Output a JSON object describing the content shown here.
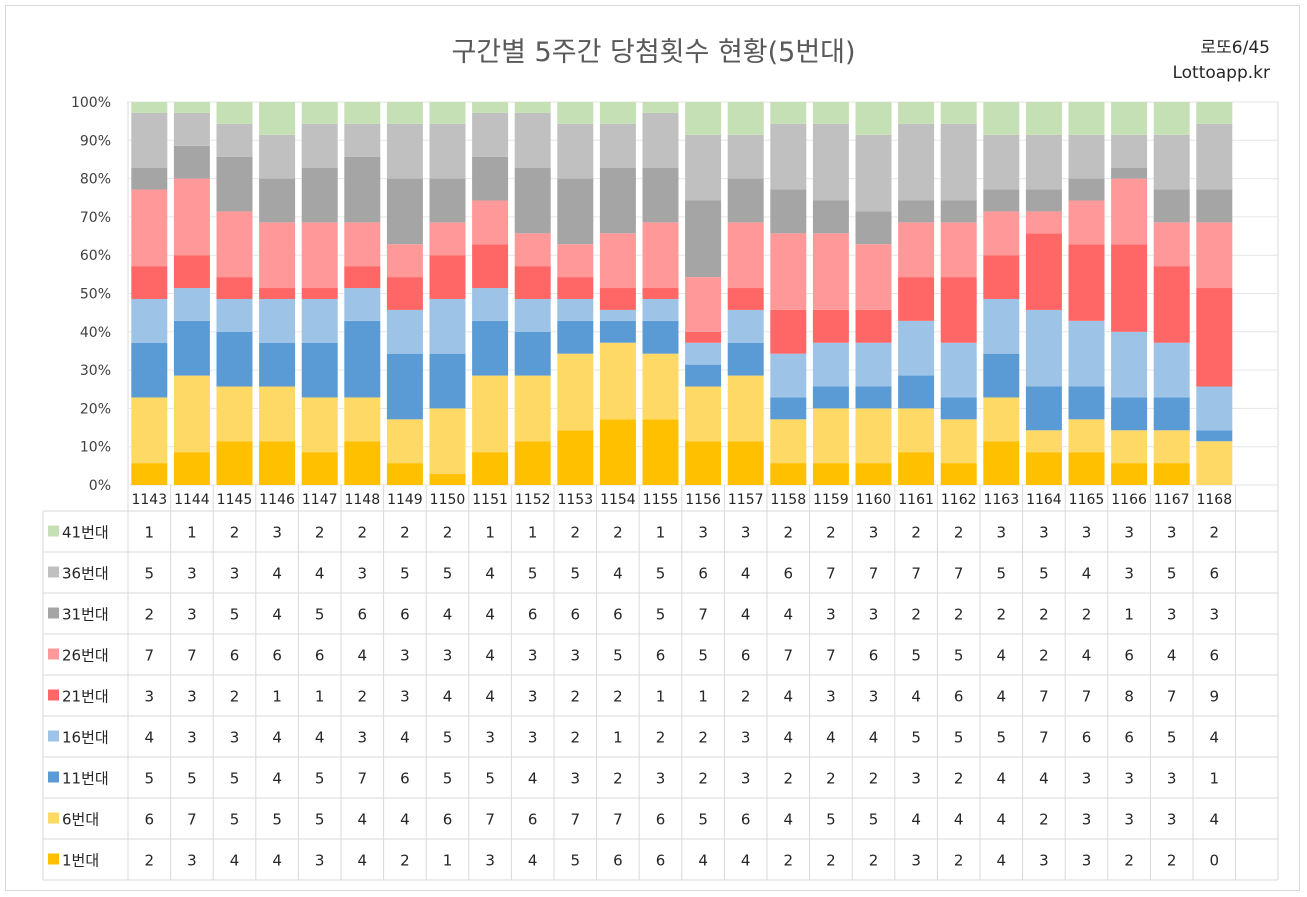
{
  "title": "구간별 5주간 당첨횟수 현황(5번대)",
  "corner_top": "로또6/45",
  "corner_bottom": "Lottoapp.kr",
  "chart_data": {
    "type": "bar",
    "stacked": "percent",
    "title": "구간별 5주간 당첨횟수 현황(5번대)",
    "categories": [
      "1143",
      "1144",
      "1145",
      "1146",
      "1147",
      "1148",
      "1149",
      "1150",
      "1151",
      "1152",
      "1153",
      "1154",
      "1155",
      "1156",
      "1157",
      "1158",
      "1159",
      "1160",
      "1161",
      "1162",
      "1163",
      "1164",
      "1165",
      "1166",
      "1167",
      "1168"
    ],
    "yticks": [
      "0%",
      "10%",
      "20%",
      "30%",
      "40%",
      "50%",
      "60%",
      "70%",
      "80%",
      "90%",
      "100%"
    ],
    "ylim": [
      0,
      100
    ],
    "grid": true,
    "legend": "data-table",
    "series": [
      {
        "name": "1번대",
        "color": "#ffc000",
        "values": [
          2,
          3,
          4,
          4,
          3,
          4,
          2,
          1,
          3,
          4,
          5,
          6,
          6,
          4,
          4,
          2,
          2,
          2,
          3,
          2,
          4,
          3,
          3,
          2,
          2,
          0
        ]
      },
      {
        "name": "6번대",
        "color": "#ffd966",
        "values": [
          6,
          7,
          5,
          5,
          5,
          4,
          4,
          6,
          7,
          6,
          7,
          7,
          6,
          5,
          6,
          4,
          5,
          5,
          4,
          4,
          4,
          2,
          3,
          3,
          3,
          4
        ]
      },
      {
        "name": "11번대",
        "color": "#5b9bd5",
        "values": [
          5,
          5,
          5,
          4,
          5,
          7,
          6,
          5,
          5,
          4,
          3,
          2,
          3,
          2,
          3,
          2,
          2,
          2,
          3,
          2,
          4,
          4,
          3,
          3,
          3,
          1
        ]
      },
      {
        "name": "16번대",
        "color": "#9dc3e6",
        "values": [
          4,
          3,
          3,
          4,
          4,
          3,
          4,
          5,
          3,
          3,
          2,
          1,
          2,
          2,
          3,
          4,
          4,
          4,
          5,
          5,
          5,
          7,
          6,
          6,
          5,
          4
        ]
      },
      {
        "name": "21번대",
        "color": "#ff6666",
        "values": [
          3,
          3,
          2,
          1,
          1,
          2,
          3,
          4,
          4,
          3,
          2,
          2,
          1,
          1,
          2,
          4,
          3,
          3,
          4,
          6,
          4,
          7,
          7,
          8,
          7,
          9
        ]
      },
      {
        "name": "26번대",
        "color": "#ff9999",
        "values": [
          7,
          7,
          6,
          6,
          6,
          4,
          3,
          3,
          4,
          3,
          3,
          5,
          6,
          5,
          6,
          7,
          7,
          6,
          5,
          5,
          4,
          2,
          4,
          6,
          4,
          6
        ]
      },
      {
        "name": "31번대",
        "color": "#a5a5a5",
        "values": [
          2,
          3,
          5,
          4,
          5,
          6,
          6,
          4,
          4,
          6,
          6,
          6,
          5,
          7,
          4,
          4,
          3,
          3,
          2,
          2,
          2,
          2,
          2,
          1,
          3,
          3
        ]
      },
      {
        "name": "36번대",
        "color": "#c0c0c0",
        "values": [
          5,
          3,
          3,
          4,
          4,
          3,
          5,
          5,
          4,
          5,
          5,
          4,
          5,
          6,
          4,
          6,
          7,
          7,
          7,
          7,
          5,
          5,
          4,
          3,
          5,
          6
        ]
      },
      {
        "name": "41번대",
        "color": "#c5e0b4",
        "values": [
          1,
          1,
          2,
          3,
          2,
          2,
          2,
          2,
          1,
          1,
          2,
          2,
          1,
          3,
          3,
          2,
          2,
          3,
          2,
          2,
          3,
          3,
          3,
          3,
          3,
          2
        ]
      }
    ]
  }
}
